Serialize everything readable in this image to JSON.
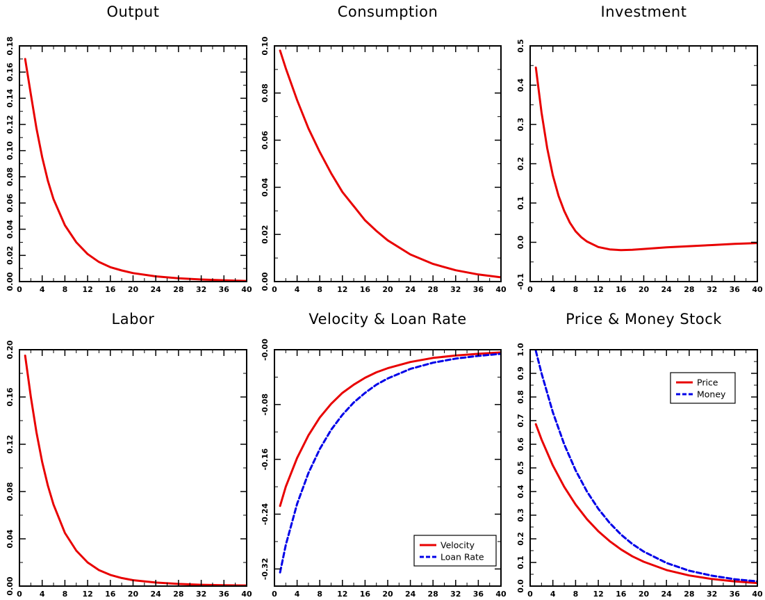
{
  "chart_data": [
    {
      "type": "line",
      "title": "Output",
      "xlim": [
        0,
        40
      ],
      "ylim": [
        0,
        0.18
      ],
      "xticks": [
        0,
        4,
        8,
        12,
        16,
        20,
        24,
        28,
        32,
        36,
        40
      ],
      "yticks": [
        0.0,
        0.02,
        0.04,
        0.06,
        0.08,
        0.1,
        0.12,
        0.14,
        0.16,
        0.18
      ],
      "ytick_labels": [
        "0.00",
        "0.02",
        "0.04",
        "0.06",
        "0.08",
        "0.10",
        "0.12",
        "0.14",
        "0.16",
        "0.18"
      ],
      "series": [
        {
          "color": "#e80000",
          "dash": "solid",
          "points": [
            [
              1,
              0.17
            ],
            [
              2,
              0.143
            ],
            [
              3,
              0.117
            ],
            [
              4,
              0.095
            ],
            [
              5,
              0.077
            ],
            [
              6,
              0.063
            ],
            [
              8,
              0.043
            ],
            [
              10,
              0.03
            ],
            [
              12,
              0.021
            ],
            [
              14,
              0.015
            ],
            [
              16,
              0.011
            ],
            [
              18,
              0.0085
            ],
            [
              20,
              0.0065
            ],
            [
              24,
              0.004
            ],
            [
              28,
              0.0025
            ],
            [
              32,
              0.0016
            ],
            [
              36,
              0.001
            ],
            [
              40,
              0.0005
            ]
          ]
        }
      ]
    },
    {
      "type": "line",
      "title": "Consumption",
      "xlim": [
        0,
        40
      ],
      "ylim": [
        0,
        0.1
      ],
      "xticks": [
        0,
        4,
        8,
        12,
        16,
        20,
        24,
        28,
        32,
        36,
        40
      ],
      "yticks": [
        0.0,
        0.02,
        0.04,
        0.06,
        0.08,
        0.1
      ],
      "ytick_labels": [
        "0.00",
        "0.02",
        "0.04",
        "0.06",
        "0.08",
        "0.10"
      ],
      "series": [
        {
          "color": "#e80000",
          "dash": "solid",
          "points": [
            [
              1,
              0.098
            ],
            [
              2,
              0.0905
            ],
            [
              4,
              0.077
            ],
            [
              6,
              0.065
            ],
            [
              8,
              0.055
            ],
            [
              10,
              0.046
            ],
            [
              12,
              0.038
            ],
            [
              14,
              0.032
            ],
            [
              16,
              0.026
            ],
            [
              18,
              0.0215
            ],
            [
              20,
              0.0175
            ],
            [
              24,
              0.0115
            ],
            [
              28,
              0.0075
            ],
            [
              32,
              0.0048
            ],
            [
              36,
              0.003
            ],
            [
              40,
              0.0018
            ]
          ]
        }
      ]
    },
    {
      "type": "line",
      "title": "Investment",
      "xlim": [
        0,
        40
      ],
      "ylim": [
        -0.1,
        0.5
      ],
      "xticks": [
        0,
        4,
        8,
        12,
        16,
        20,
        24,
        28,
        32,
        36,
        40
      ],
      "yticks": [
        -0.1,
        0.0,
        0.1,
        0.2,
        0.3,
        0.4,
        0.5
      ],
      "ytick_labels": [
        "-0.1",
        "0.0",
        "0.1",
        "0.2",
        "0.3",
        "0.4",
        "0.5"
      ],
      "series": [
        {
          "color": "#e80000",
          "dash": "solid",
          "points": [
            [
              1,
              0.445
            ],
            [
              2,
              0.33
            ],
            [
              3,
              0.24
            ],
            [
              4,
              0.17
            ],
            [
              5,
              0.118
            ],
            [
              6,
              0.08
            ],
            [
              7,
              0.05
            ],
            [
              8,
              0.028
            ],
            [
              9,
              0.013
            ],
            [
              10,
              0.002
            ],
            [
              12,
              -0.012
            ],
            [
              14,
              -0.018
            ],
            [
              16,
              -0.02
            ],
            [
              18,
              -0.019
            ],
            [
              20,
              -0.017
            ],
            [
              24,
              -0.013
            ],
            [
              28,
              -0.01
            ],
            [
              32,
              -0.007
            ],
            [
              36,
              -0.004
            ],
            [
              40,
              -0.002
            ]
          ]
        }
      ]
    },
    {
      "type": "line",
      "title": "Labor",
      "xlim": [
        0,
        40
      ],
      "ylim": [
        0,
        0.2
      ],
      "xticks": [
        0,
        4,
        8,
        12,
        16,
        20,
        24,
        28,
        32,
        36,
        40
      ],
      "yticks": [
        0.0,
        0.04,
        0.08,
        0.12,
        0.16,
        0.2
      ],
      "ytick_labels": [
        "0.00",
        "0.04",
        "0.08",
        "0.12",
        "0.16",
        "0.20"
      ],
      "series": [
        {
          "color": "#e80000",
          "dash": "solid",
          "points": [
            [
              1,
              0.195
            ],
            [
              2,
              0.16
            ],
            [
              3,
              0.13
            ],
            [
              4,
              0.105
            ],
            [
              5,
              0.085
            ],
            [
              6,
              0.069
            ],
            [
              8,
              0.045
            ],
            [
              10,
              0.03
            ],
            [
              12,
              0.02
            ],
            [
              14,
              0.0135
            ],
            [
              16,
              0.0095
            ],
            [
              18,
              0.0068
            ],
            [
              20,
              0.005
            ],
            [
              24,
              0.003
            ],
            [
              28,
              0.0018
            ],
            [
              32,
              0.0011
            ],
            [
              36,
              0.0007
            ],
            [
              40,
              0.0005
            ]
          ]
        }
      ]
    },
    {
      "type": "line",
      "title": "Velocity & Loan Rate",
      "xlim": [
        0,
        40
      ],
      "ylim": [
        -0.345,
        0.0
      ],
      "xticks": [
        0,
        4,
        8,
        12,
        16,
        20,
        24,
        28,
        32,
        36,
        40
      ],
      "yticks": [
        -0.32,
        -0.24,
        -0.16,
        -0.08,
        0.0
      ],
      "ytick_labels": [
        "-0.32",
        "-0.24",
        "-0.16",
        "-0.08",
        "-0.00"
      ],
      "legend": {
        "position": "bottom-right",
        "entries": [
          "Velocity",
          "Loan Rate"
        ]
      },
      "series": [
        {
          "name": "Velocity",
          "color": "#e80000",
          "dash": "solid",
          "points": [
            [
              1,
              -0.228
            ],
            [
              2,
              -0.2
            ],
            [
              4,
              -0.158
            ],
            [
              6,
              -0.125
            ],
            [
              8,
              -0.099
            ],
            [
              10,
              -0.079
            ],
            [
              12,
              -0.063
            ],
            [
              14,
              -0.051
            ],
            [
              16,
              -0.041
            ],
            [
              18,
              -0.033
            ],
            [
              20,
              -0.027
            ],
            [
              24,
              -0.018
            ],
            [
              28,
              -0.012
            ],
            [
              32,
              -0.0085
            ],
            [
              36,
              -0.006
            ],
            [
              40,
              -0.004
            ]
          ]
        },
        {
          "name": "Loan Rate",
          "color": "#0000e8",
          "dash": "dashed",
          "points": [
            [
              1,
              -0.325
            ],
            [
              2,
              -0.285
            ],
            [
              4,
              -0.225
            ],
            [
              6,
              -0.18
            ],
            [
              8,
              -0.145
            ],
            [
              10,
              -0.117
            ],
            [
              12,
              -0.095
            ],
            [
              14,
              -0.077
            ],
            [
              16,
              -0.063
            ],
            [
              18,
              -0.051
            ],
            [
              20,
              -0.042
            ],
            [
              24,
              -0.028
            ],
            [
              28,
              -0.019
            ],
            [
              32,
              -0.013
            ],
            [
              36,
              -0.009
            ],
            [
              40,
              -0.006
            ]
          ]
        }
      ]
    },
    {
      "type": "line",
      "title": "Price & Money Stock",
      "xlim": [
        0,
        40
      ],
      "ylim": [
        0.0,
        1.0
      ],
      "xticks": [
        0,
        4,
        8,
        12,
        16,
        20,
        24,
        28,
        32,
        36,
        40
      ],
      "yticks": [
        0.0,
        0.1,
        0.2,
        0.3,
        0.4,
        0.5,
        0.6,
        0.7,
        0.8,
        0.9,
        1.0
      ],
      "ytick_labels": [
        "0.0",
        "0.1",
        "0.2",
        "0.3",
        "0.4",
        "0.5",
        "0.6",
        "0.7",
        "0.8",
        "0.9",
        "1.0"
      ],
      "legend": {
        "position": "top-right",
        "entries": [
          "Price",
          "Money"
        ]
      },
      "series": [
        {
          "name": "Price",
          "color": "#e80000",
          "dash": "solid",
          "points": [
            [
              1,
              0.685
            ],
            [
              2,
              0.62
            ],
            [
              4,
              0.51
            ],
            [
              6,
              0.42
            ],
            [
              8,
              0.345
            ],
            [
              10,
              0.283
            ],
            [
              12,
              0.232
            ],
            [
              14,
              0.19
            ],
            [
              16,
              0.155
            ],
            [
              18,
              0.126
            ],
            [
              20,
              0.103
            ],
            [
              24,
              0.068
            ],
            [
              28,
              0.045
            ],
            [
              32,
              0.03
            ],
            [
              36,
              0.02
            ],
            [
              40,
              0.013
            ]
          ]
        },
        {
          "name": "Money",
          "color": "#0000e8",
          "dash": "dashed",
          "points": [
            [
              1,
              0.995
            ],
            [
              2,
              0.9
            ],
            [
              4,
              0.735
            ],
            [
              6,
              0.6
            ],
            [
              8,
              0.49
            ],
            [
              10,
              0.4
            ],
            [
              12,
              0.327
            ],
            [
              14,
              0.267
            ],
            [
              16,
              0.218
            ],
            [
              18,
              0.178
            ],
            [
              20,
              0.146
            ],
            [
              24,
              0.098
            ],
            [
              28,
              0.065
            ],
            [
              32,
              0.044
            ],
            [
              36,
              0.029
            ],
            [
              40,
              0.02
            ]
          ]
        }
      ]
    }
  ]
}
